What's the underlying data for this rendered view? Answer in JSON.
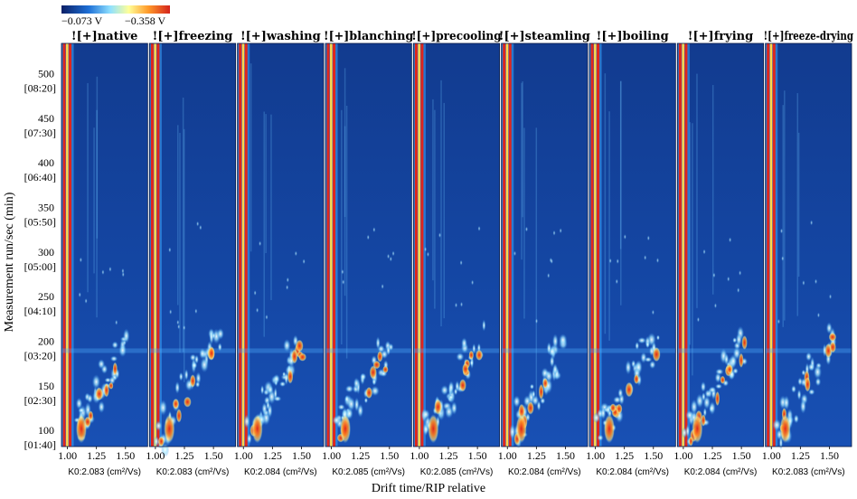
{
  "chart_data": {
    "type": "heatmap",
    "title": "",
    "xlabel": "Drift time/RIP relative",
    "ylabel": "Measurement run/sec (min)",
    "colorbar": {
      "low_label": "−0.073 V",
      "high_label": "−0.358 V",
      "colors": [
        "#0b1f66",
        "#1d6fd6",
        "#8fe0ff",
        "#ffff99",
        "#ff9a2a",
        "#d4231c"
      ]
    },
    "x_ticks": [
      "1.00",
      "1.25",
      "1.50"
    ],
    "x_tick_values": [
      1.0,
      1.25,
      1.5
    ],
    "xlim": [
      0.98,
      1.66
    ],
    "y_ticks": [
      {
        "value": 100,
        "label": "100",
        "sub": "[01:40]"
      },
      {
        "value": 150,
        "label": "150",
        "sub": "[02:30]"
      },
      {
        "value": 200,
        "label": "200",
        "sub": "[03:20]"
      },
      {
        "value": 250,
        "label": "250",
        "sub": "[04:10]"
      },
      {
        "value": 300,
        "label": "300",
        "sub": "[05:00]"
      },
      {
        "value": 350,
        "label": "350",
        "sub": "[05:50]"
      },
      {
        "value": 400,
        "label": "400",
        "sub": "[06:40]"
      },
      {
        "value": 450,
        "label": "450",
        "sub": "[07:30]"
      },
      {
        "value": 500,
        "label": "500",
        "sub": "[08:20]"
      }
    ],
    "ylim": [
      88,
      540
    ],
    "panels": [
      {
        "name": "![+]native",
        "k0": "K0:2.083 (cm²/Vs)"
      },
      {
        "name": "![+]freezing",
        "k0": "K0:2.083 (cm²/Vs)"
      },
      {
        "name": "![+]washing",
        "k0": "K0:2.084 (cm²/Vs)"
      },
      {
        "name": "![+]blanching",
        "k0": "K0:2.085 (cm²/Vs)"
      },
      {
        "name": "![+]precooling",
        "k0": "K0:2.085 (cm²/Vs)"
      },
      {
        "name": "![+]steamling",
        "k0": "K0:2.084 (cm²/Vs)"
      },
      {
        "name": "![+]boiling",
        "k0": "K0:2.084 (cm²/Vs)"
      },
      {
        "name": "![+]frying",
        "k0": "K0:2.084 (cm²/Vs)"
      },
      {
        "name": "![+]freeze-drying",
        "k0": "K0:2.083 (cm²/Vs)"
      }
    ]
  }
}
